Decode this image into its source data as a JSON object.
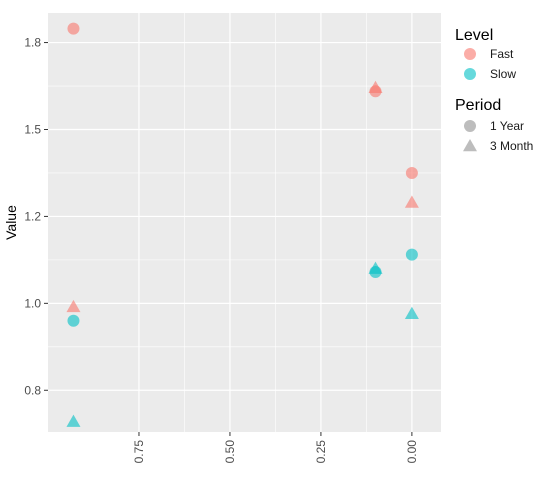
{
  "chart_data": {
    "type": "scatter",
    "xlabel": "",
    "ylabel": "Value",
    "x_reversed": true,
    "xlim": [
      1.0,
      -0.08
    ],
    "ylim": [
      0.63,
      1.835
    ],
    "x_ticks": [
      {
        "value": 0.75,
        "label": "0.75"
      },
      {
        "value": 0.5,
        "label": "0.50"
      },
      {
        "value": 0.25,
        "label": "0.25"
      },
      {
        "value": 0.0,
        "label": "0.00"
      }
    ],
    "y_ticks": [
      {
        "value": 0.75,
        "label": "0.8"
      },
      {
        "value": 1.0,
        "label": "1.0"
      },
      {
        "value": 1.25,
        "label": "1.2"
      },
      {
        "value": 1.5,
        "label": "1.5"
      },
      {
        "value": 1.75,
        "label": "1.8"
      }
    ],
    "grid": true,
    "legend_placement": "right",
    "colors": {
      "Fast": "#F8766D",
      "Slow": "#00BFC4",
      "panel": "#EBEBEB",
      "grid": "#FFFFFF",
      "legend_shape": "#BDBDBD"
    },
    "legends": [
      {
        "title": "Level",
        "entries": [
          {
            "label": "Fast",
            "color": "#F8766D",
            "shape": "circle"
          },
          {
            "label": "Slow",
            "color": "#00BFC4",
            "shape": "circle"
          }
        ]
      },
      {
        "title": "Period",
        "entries": [
          {
            "label": "1 Year",
            "shape": "circle"
          },
          {
            "label": "3 Month",
            "shape": "triangle"
          }
        ]
      }
    ],
    "points": [
      {
        "level": "Fast",
        "period": "1 Year",
        "x": 0.93,
        "y": 1.79
      },
      {
        "level": "Fast",
        "period": "3 Month",
        "x": 0.93,
        "y": 0.99
      },
      {
        "level": "Slow",
        "period": "1 Year",
        "x": 0.93,
        "y": 0.95
      },
      {
        "level": "Slow",
        "period": "3 Month",
        "x": 0.93,
        "y": 0.66
      },
      {
        "level": "Fast",
        "period": "1 Year",
        "x": 0.1,
        "y": 1.61
      },
      {
        "level": "Fast",
        "period": "3 Month",
        "x": 0.1,
        "y": 1.62
      },
      {
        "level": "Slow",
        "period": "1 Year",
        "x": 0.1,
        "y": 1.09
      },
      {
        "level": "Slow",
        "period": "3 Month",
        "x": 0.1,
        "y": 1.1
      },
      {
        "level": "Fast",
        "period": "1 Year",
        "x": 0.0,
        "y": 1.375
      },
      {
        "level": "Fast",
        "period": "3 Month",
        "x": 0.0,
        "y": 1.29
      },
      {
        "level": "Slow",
        "period": "1 Year",
        "x": 0.0,
        "y": 1.14
      },
      {
        "level": "Slow",
        "period": "3 Month",
        "x": 0.0,
        "y": 0.97
      }
    ]
  }
}
